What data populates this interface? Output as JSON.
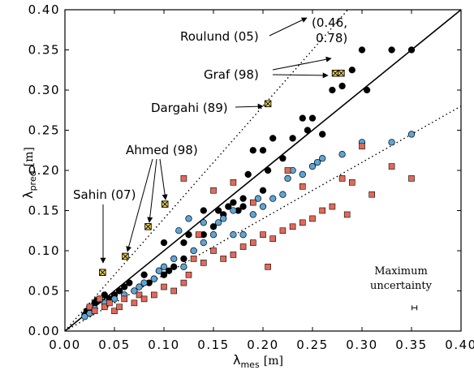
{
  "chart_data": {
    "type": "scatter",
    "xlim": [
      0,
      0.4
    ],
    "ylim": [
      0,
      0.4
    ],
    "xticks": [
      "0.00",
      "0.05",
      "0.10",
      "0.15",
      "0.20",
      "0.25",
      "0.30",
      "0.35",
      "0.40"
    ],
    "yticks": [
      "0.00",
      "0.05",
      "0.10",
      "0.15",
      "0.20",
      "0.25",
      "0.30",
      "0.35",
      "0.40"
    ],
    "xlabel_main": "λ",
    "xlabel_sub": "mes",
    "xlabel_unit": "[m]",
    "ylabel_main": "λ",
    "ylabel_sub": "pred",
    "ylabel_unit": "[m]",
    "grid": false,
    "reference_lines": [
      {
        "style": "solid",
        "slope": 1.0
      },
      {
        "style": "dotted",
        "slope": 1.4
      },
      {
        "style": "dotted",
        "slope": 0.7
      }
    ],
    "series": [
      {
        "marker": "circle",
        "color": "#000000",
        "points": [
          [
            0.02,
            0.02
          ],
          [
            0.022,
            0.025
          ],
          [
            0.025,
            0.028
          ],
          [
            0.028,
            0.03
          ],
          [
            0.03,
            0.035
          ],
          [
            0.032,
            0.038
          ],
          [
            0.035,
            0.04
          ],
          [
            0.04,
            0.045
          ],
          [
            0.045,
            0.04
          ],
          [
            0.05,
            0.045
          ],
          [
            0.055,
            0.05
          ],
          [
            0.06,
            0.055
          ],
          [
            0.065,
            0.06
          ],
          [
            0.07,
            0.05
          ],
          [
            0.08,
            0.07
          ],
          [
            0.085,
            0.06
          ],
          [
            0.09,
            0.065
          ],
          [
            0.095,
            0.075
          ],
          [
            0.1,
            0.07
          ],
          [
            0.105,
            0.075
          ],
          [
            0.1,
            0.11
          ],
          [
            0.11,
            0.08
          ],
          [
            0.12,
            0.09
          ],
          [
            0.125,
            0.12
          ],
          [
            0.13,
            0.1
          ],
          [
            0.14,
            0.12
          ],
          [
            0.15,
            0.13
          ],
          [
            0.155,
            0.15
          ],
          [
            0.16,
            0.145
          ],
          [
            0.165,
            0.155
          ],
          [
            0.17,
            0.16
          ],
          [
            0.175,
            0.15
          ],
          [
            0.18,
            0.165
          ],
          [
            0.185,
            0.195
          ],
          [
            0.19,
            0.225
          ],
          [
            0.2,
            0.225
          ],
          [
            0.205,
            0.2
          ],
          [
            0.21,
            0.24
          ],
          [
            0.22,
            0.215
          ],
          [
            0.23,
            0.24
          ],
          [
            0.24,
            0.265
          ],
          [
            0.245,
            0.25
          ],
          [
            0.25,
            0.265
          ],
          [
            0.26,
            0.245
          ],
          [
            0.27,
            0.3
          ],
          [
            0.28,
            0.305
          ],
          [
            0.29,
            0.325
          ],
          [
            0.3,
            0.35
          ],
          [
            0.305,
            0.3
          ],
          [
            0.33,
            0.35
          ],
          [
            0.35,
            0.35
          ],
          [
            0.18,
            0.155
          ],
          [
            0.2,
            0.175
          ],
          [
            0.14,
            0.15
          ],
          [
            0.12,
            0.11
          ]
        ]
      },
      {
        "marker": "circle",
        "color": "#5da5d4",
        "points": [
          [
            0.02,
            0.018
          ],
          [
            0.025,
            0.022
          ],
          [
            0.03,
            0.028
          ],
          [
            0.04,
            0.035
          ],
          [
            0.05,
            0.04
          ],
          [
            0.06,
            0.045
          ],
          [
            0.07,
            0.05
          ],
          [
            0.075,
            0.055
          ],
          [
            0.08,
            0.06
          ],
          [
            0.09,
            0.065
          ],
          [
            0.095,
            0.075
          ],
          [
            0.1,
            0.08
          ],
          [
            0.11,
            0.09
          ],
          [
            0.12,
            0.08
          ],
          [
            0.13,
            0.1
          ],
          [
            0.14,
            0.11
          ],
          [
            0.15,
            0.12
          ],
          [
            0.155,
            0.135
          ],
          [
            0.16,
            0.14
          ],
          [
            0.17,
            0.15
          ],
          [
            0.18,
            0.12
          ],
          [
            0.19,
            0.145
          ],
          [
            0.2,
            0.155
          ],
          [
            0.21,
            0.165
          ],
          [
            0.22,
            0.17
          ],
          [
            0.225,
            0.19
          ],
          [
            0.23,
            0.2
          ],
          [
            0.24,
            0.195
          ],
          [
            0.25,
            0.205
          ],
          [
            0.255,
            0.21
          ],
          [
            0.26,
            0.215
          ],
          [
            0.28,
            0.22
          ],
          [
            0.3,
            0.235
          ],
          [
            0.33,
            0.235
          ],
          [
            0.35,
            0.245
          ],
          [
            0.125,
            0.14
          ],
          [
            0.115,
            0.125
          ],
          [
            0.14,
            0.135
          ],
          [
            0.17,
            0.12
          ],
          [
            0.195,
            0.165
          ]
        ]
      },
      {
        "marker": "square",
        "color": "#e06a5a",
        "points": [
          [
            0.025,
            0.03
          ],
          [
            0.03,
            0.025
          ],
          [
            0.035,
            0.04
          ],
          [
            0.04,
            0.03
          ],
          [
            0.045,
            0.035
          ],
          [
            0.05,
            0.025
          ],
          [
            0.055,
            0.03
          ],
          [
            0.06,
            0.04
          ],
          [
            0.07,
            0.035
          ],
          [
            0.075,
            0.045
          ],
          [
            0.08,
            0.04
          ],
          [
            0.09,
            0.045
          ],
          [
            0.1,
            0.055
          ],
          [
            0.11,
            0.05
          ],
          [
            0.12,
            0.06
          ],
          [
            0.12,
            0.19
          ],
          [
            0.13,
            0.09
          ],
          [
            0.14,
            0.085
          ],
          [
            0.15,
            0.1
          ],
          [
            0.16,
            0.09
          ],
          [
            0.17,
            0.095
          ],
          [
            0.18,
            0.105
          ],
          [
            0.19,
            0.11
          ],
          [
            0.2,
            0.12
          ],
          [
            0.21,
            0.115
          ],
          [
            0.22,
            0.125
          ],
          [
            0.23,
            0.13
          ],
          [
            0.24,
            0.135
          ],
          [
            0.25,
            0.14
          ],
          [
            0.26,
            0.15
          ],
          [
            0.27,
            0.155
          ],
          [
            0.28,
            0.19
          ],
          [
            0.285,
            0.145
          ],
          [
            0.29,
            0.185
          ],
          [
            0.3,
            0.23
          ],
          [
            0.31,
            0.17
          ],
          [
            0.33,
            0.205
          ],
          [
            0.35,
            0.19
          ],
          [
            0.15,
            0.175
          ],
          [
            0.17,
            0.185
          ],
          [
            0.19,
            0.16
          ],
          [
            0.24,
            0.18
          ],
          [
            0.225,
            0.2
          ],
          [
            0.135,
            0.12
          ],
          [
            0.125,
            0.07
          ],
          [
            0.205,
            0.08
          ]
        ]
      },
      {
        "marker": "square-x",
        "color": "#f2d44a",
        "points": [
          [
            0.038,
            0.073
          ],
          [
            0.061,
            0.093
          ],
          [
            0.084,
            0.13
          ],
          [
            0.101,
            0.158
          ],
          [
            0.205,
            0.283
          ],
          [
            0.273,
            0.321
          ],
          [
            0.279,
            0.321
          ]
        ]
      }
    ],
    "annotations": [
      {
        "text": "Roulund (05)",
        "arrow_to": [
          0.3,
          0.33
        ]
      },
      {
        "text": "(0.46,",
        "arrow_to": null
      },
      {
        "text": "0.78)",
        "arrow_to": null
      },
      {
        "text": "Graf (98)",
        "arrow_to": [
          0.277,
          0.323
        ]
      },
      {
        "text": "Dargahi (89)",
        "arrow_to": [
          0.203,
          0.283
        ]
      },
      {
        "text": "Ahmed (98)",
        "arrow_to": [
          0.085,
          0.135
        ]
      },
      {
        "text": "Sahin (07)",
        "arrow_to": [
          0.038,
          0.077
        ]
      }
    ],
    "uncertainty": {
      "label_line1": "Maximum",
      "label_line2": "uncertainty",
      "center": [
        0.353,
        0.029
      ],
      "half_width": 0.002
    }
  }
}
